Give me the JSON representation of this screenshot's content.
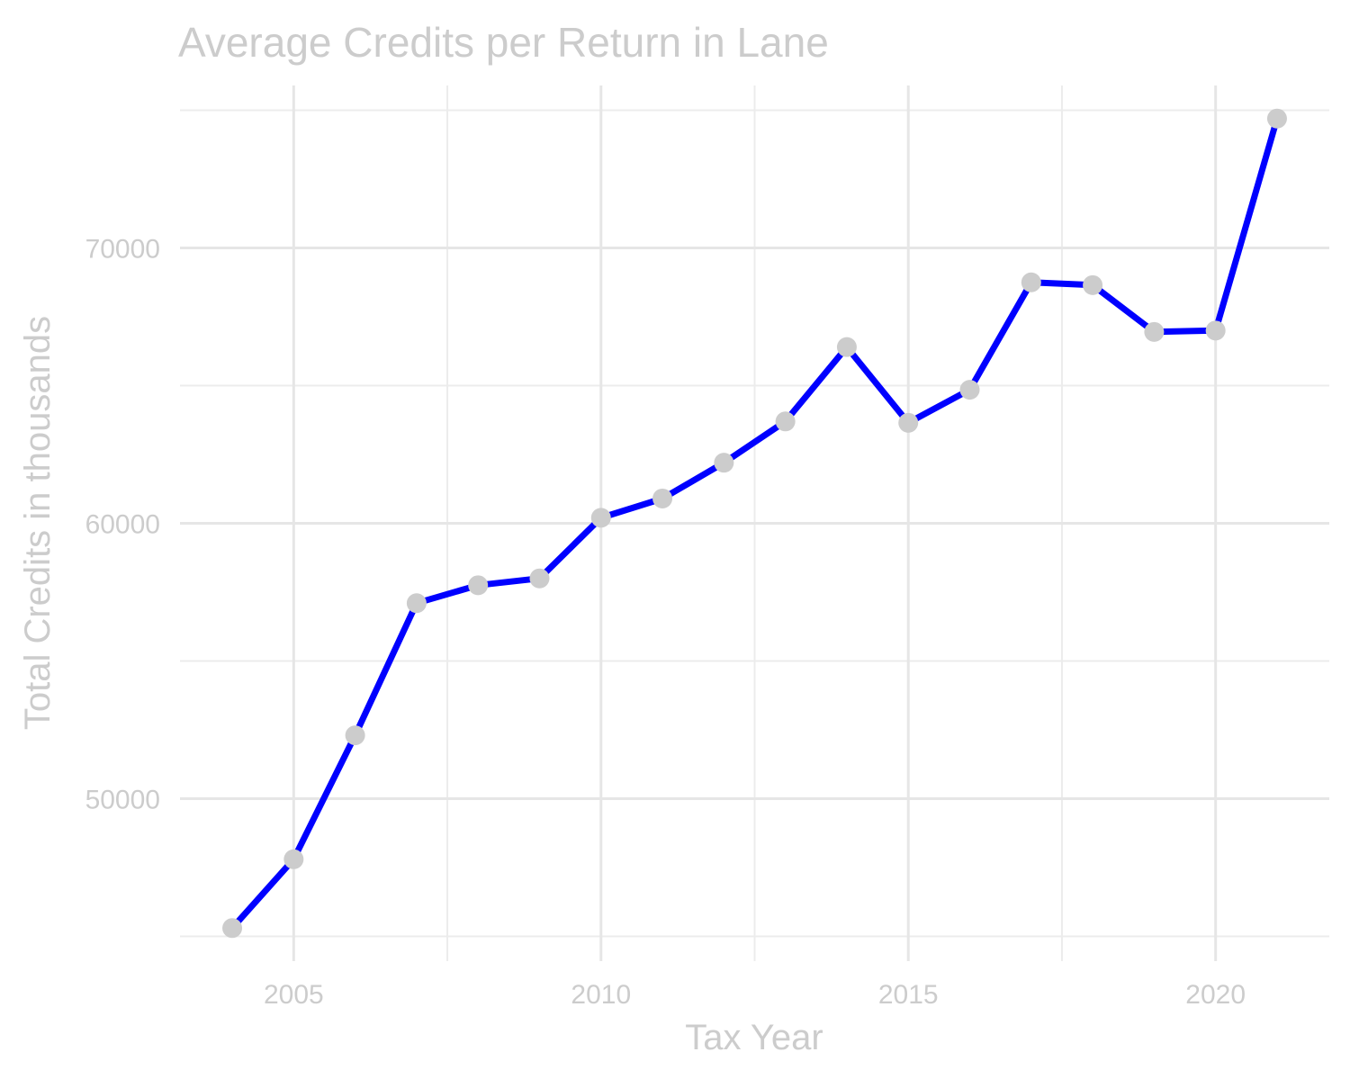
{
  "chart_data": {
    "type": "line",
    "title": "Average Credits per Return in Lane",
    "xlabel": "Tax Year",
    "ylabel": "Total Credits in thousands",
    "x": [
      2004,
      2005,
      2006,
      2007,
      2008,
      2009,
      2010,
      2011,
      2012,
      2013,
      2014,
      2015,
      2016,
      2017,
      2018,
      2019,
      2020,
      2021
    ],
    "series": [
      {
        "values": [
          45300,
          47800,
          52300,
          57100,
          57750,
          58000,
          60200,
          60900,
          62200,
          63700,
          66400,
          63650,
          64850,
          68750,
          68650,
          66950,
          67000,
          74700
        ]
      }
    ],
    "xlim": [
      2003.15,
      2021.85
    ],
    "ylim": [
      44100,
      75900
    ],
    "x_ticks": [
      2005,
      2010,
      2015,
      2020
    ],
    "x_tick_labels": [
      "2005",
      "2010",
      "2015",
      "2020"
    ],
    "x_minor_ticks": [
      2007.5,
      2012.5,
      2017.5
    ],
    "y_ticks": [
      50000,
      60000,
      70000
    ],
    "y_tick_labels": [
      "50000",
      "60000",
      "70000"
    ],
    "y_minor_ticks": [
      45000,
      55000,
      65000,
      75000
    ],
    "grid": true,
    "legend": "none",
    "colors": {
      "line": "#0000ff",
      "points": "#cccccc",
      "text": "#cccccc",
      "grid": "#e6e6e6"
    }
  }
}
